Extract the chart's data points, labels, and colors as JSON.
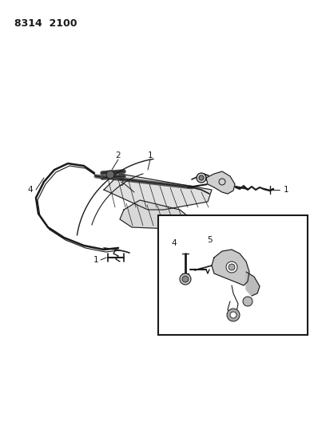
{
  "title": "8314  2100",
  "bg_color": "#ffffff",
  "line_color": "#1a1a1a",
  "figsize": [
    3.98,
    5.33
  ],
  "dpi": 100,
  "title_fontsize": 9,
  "label_fontsize": 7.5
}
